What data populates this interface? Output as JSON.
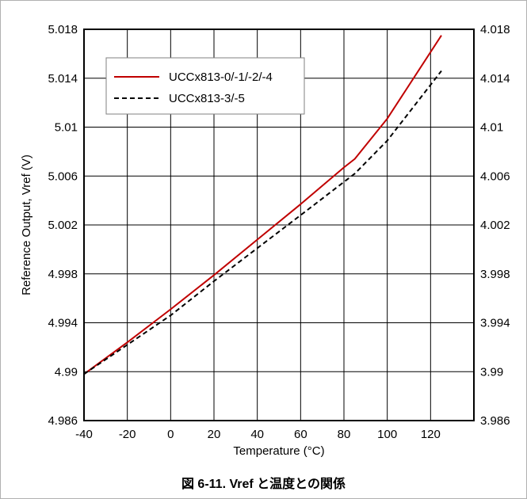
{
  "caption": "図 6-11. Vref と温度との関係",
  "chart_data": {
    "type": "line",
    "xlabel": "Temperature (°C)",
    "ylabel": "Reference Output, Vref (V)",
    "xlim": [
      -40,
      140
    ],
    "ylim": [
      4.986,
      5.018
    ],
    "y2lim": [
      3.986,
      4.018
    ],
    "x_ticks": [
      -40,
      -20,
      0,
      20,
      40,
      60,
      80,
      100,
      120
    ],
    "y_ticks": [
      "4.986",
      "4.99",
      "4.994",
      "4.998",
      "5.002",
      "5.006",
      "5.01",
      "5.014",
      "5.018"
    ],
    "y2_ticks": [
      "3.986",
      "3.99",
      "3.994",
      "3.998",
      "4.002",
      "4.006",
      "4.01",
      "4.014",
      "4.018"
    ],
    "grid": true,
    "legend_position": "top-left",
    "series": [
      {
        "name": "UCCx813-0/-1/-2/-4",
        "color": "#c00000",
        "style": "solid",
        "x": [
          -40,
          -20,
          0,
          20,
          40,
          60,
          80,
          85,
          100,
          125
        ],
        "y": [
          4.9898,
          4.9924,
          4.9951,
          4.9979,
          5.0008,
          5.0037,
          5.0067,
          5.0074,
          5.0107,
          5.0175
        ]
      },
      {
        "name": "UCCx813-3/-5",
        "color": "#000000",
        "style": "dashed",
        "x": [
          -40,
          -20,
          0,
          20,
          40,
          60,
          85,
          100,
          125
        ],
        "y": [
          4.9898,
          4.9922,
          4.9946,
          4.9974,
          5.0001,
          5.0028,
          5.0062,
          5.0089,
          5.0146
        ]
      }
    ]
  }
}
